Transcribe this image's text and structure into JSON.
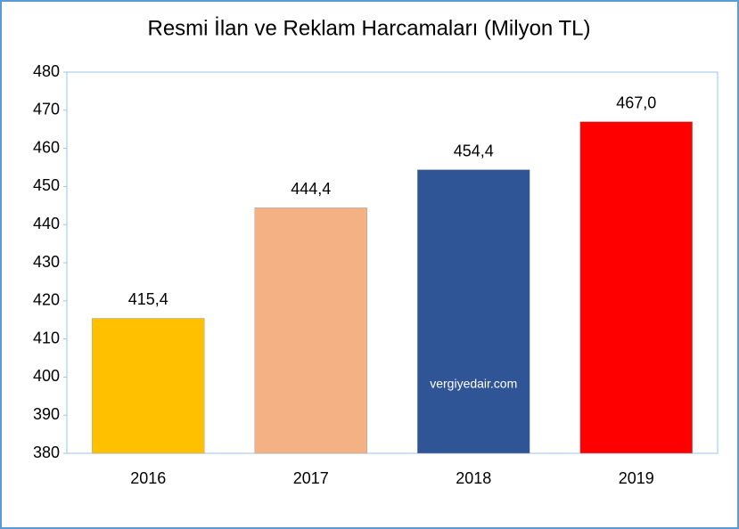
{
  "chart_data": {
    "type": "bar",
    "title": "Resmi İlan ve Reklam Harcamaları (Milyon TL)",
    "categories": [
      "2016",
      "2017",
      "2018",
      "2019"
    ],
    "values": [
      415.4,
      444.4,
      454.4,
      467.0
    ],
    "value_labels": [
      "415,4",
      "444,4",
      "454,4",
      "467,0"
    ],
    "colors": [
      "#ffc000",
      "#f4b183",
      "#2f5597",
      "#ff0000"
    ],
    "ylim": [
      380,
      480
    ],
    "yticks": [
      380,
      390,
      400,
      410,
      420,
      430,
      440,
      450,
      460,
      470,
      480
    ],
    "grid": false,
    "annotation": "vergiyedair.com"
  }
}
